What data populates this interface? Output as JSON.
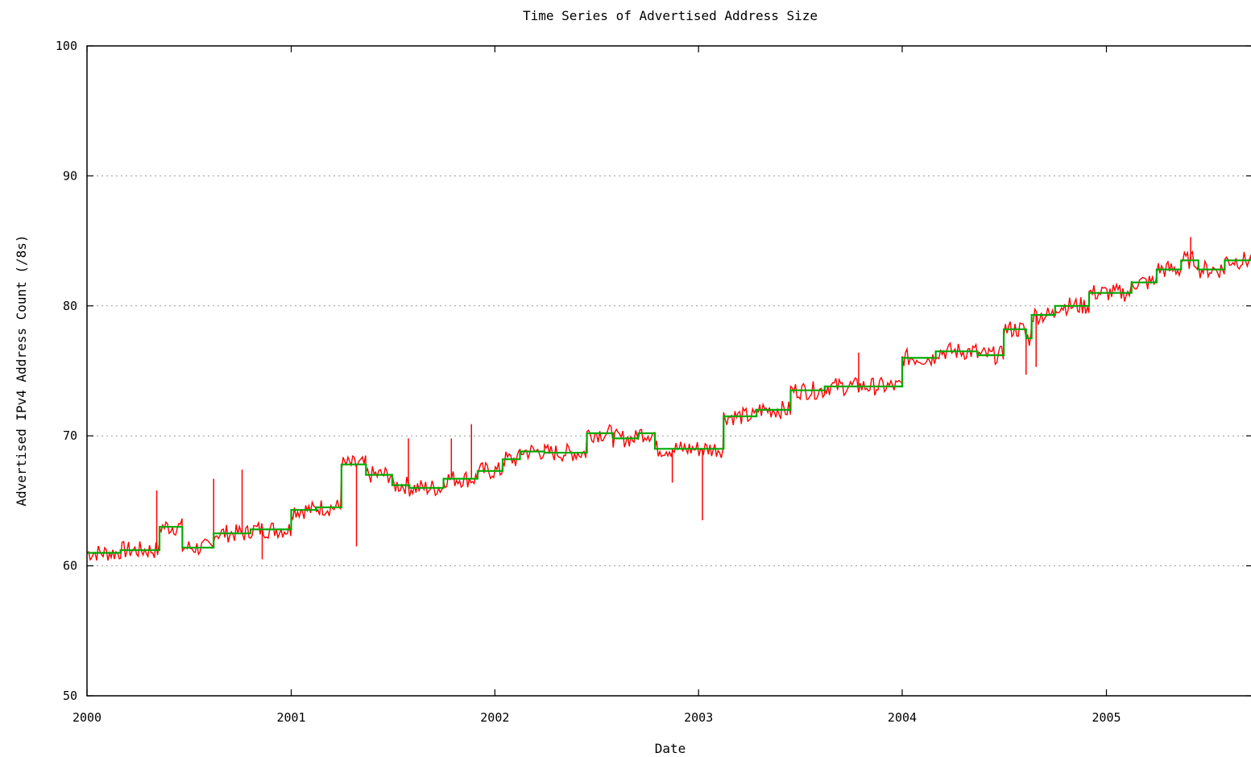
{
  "chart_data": {
    "type": "line",
    "title": "Time Series of Advertised Address Size",
    "xlabel": "Date",
    "ylabel": "Advertised IPv4 Address Count (/8s)",
    "xlim": [
      "2000-01-01",
      "2005-09-20"
    ],
    "ylim": [
      50,
      100
    ],
    "x_ticks": [
      "2000",
      "2001",
      "2002",
      "2003",
      "2004",
      "2005"
    ],
    "y_ticks": [
      50,
      60,
      70,
      80,
      90,
      100
    ],
    "grid": {
      "y": true,
      "x": false,
      "style": "dotted"
    },
    "legend": null,
    "series": [
      {
        "color": "#ff0000",
        "style": "noisy daily values with spikes",
        "x": [
          "2000-01-01",
          "2000-03-01",
          "2000-05-10",
          "2000-06-20",
          "2000-08-15",
          "2000-10-20",
          "2001-01-01",
          "2001-02-15",
          "2001-04-01",
          "2001-05-15",
          "2001-07-01",
          "2001-08-01",
          "2001-10-01",
          "2001-12-01",
          "2002-01-15",
          "2002-02-15",
          "2002-03-31",
          "2002-05-15",
          "2002-06-15",
          "2002-08-01",
          "2002-09-15",
          "2002-10-15",
          "2002-12-01",
          "2003-01-10",
          "2003-02-15",
          "2003-04-15",
          "2003-06-15",
          "2003-08-15",
          "2003-10-15",
          "2004-01-01",
          "2004-03-01",
          "2004-05-15",
          "2004-07-01",
          "2004-08-10",
          "2004-08-20",
          "2004-10-01",
          "2004-12-01",
          "2005-02-15",
          "2005-04-01",
          "2005-05-15",
          "2005-06-15",
          "2005-08-01",
          "2005-09-20"
        ],
        "y": [
          61.0,
          61.2,
          63.0,
          61.4,
          62.5,
          62.8,
          64.3,
          64.5,
          67.8,
          67.0,
          66.2,
          66.0,
          66.7,
          67.3,
          68.2,
          68.8,
          68.7,
          68.7,
          70.2,
          69.8,
          70.2,
          69.0,
          69.0,
          69.0,
          71.5,
          72.0,
          73.5,
          73.8,
          73.8,
          76.0,
          76.5,
          76.2,
          78.2,
          77.5,
          79.3,
          80.0,
          81.0,
          81.8,
          82.8,
          83.5,
          82.8,
          83.5,
          84.8
        ],
        "spikes": [
          {
            "x": "2000-05-05",
            "y": 65.8
          },
          {
            "x": "2000-08-15",
            "y": 66.7
          },
          {
            "x": "2000-10-05",
            "y": 67.4
          },
          {
            "x": "2000-11-10",
            "y": 60.5
          },
          {
            "x": "2001-04-28",
            "y": 61.5
          },
          {
            "x": "2001-07-30",
            "y": 69.8
          },
          {
            "x": "2001-10-15",
            "y": 69.8
          },
          {
            "x": "2001-11-20",
            "y": 70.9
          },
          {
            "x": "2002-11-15",
            "y": 66.4
          },
          {
            "x": "2003-01-08",
            "y": 63.5
          },
          {
            "x": "2003-10-15",
            "y": 76.4
          },
          {
            "x": "2004-08-10",
            "y": 74.7
          },
          {
            "x": "2004-08-28",
            "y": 75.3
          },
          {
            "x": "2005-06-01",
            "y": 85.3
          }
        ]
      },
      {
        "color": "#00aa00",
        "style": "smoothed step line",
        "x": [
          "2000-01-01",
          "2000-03-01",
          "2000-05-10",
          "2000-06-20",
          "2000-08-15",
          "2000-10-20",
          "2001-01-01",
          "2001-02-15",
          "2001-04-01",
          "2001-05-15",
          "2001-07-01",
          "2001-08-01",
          "2001-10-01",
          "2001-12-01",
          "2002-01-15",
          "2002-02-15",
          "2002-03-31",
          "2002-05-15",
          "2002-06-15",
          "2002-08-01",
          "2002-09-15",
          "2002-10-15",
          "2002-12-01",
          "2003-01-10",
          "2003-02-15",
          "2003-04-15",
          "2003-06-15",
          "2003-08-15",
          "2003-10-15",
          "2004-01-01",
          "2004-03-01",
          "2004-05-15",
          "2004-07-01",
          "2004-08-10",
          "2004-08-20",
          "2004-10-01",
          "2004-12-01",
          "2005-02-15",
          "2005-04-01",
          "2005-05-15",
          "2005-06-15",
          "2005-08-01",
          "2005-09-20"
        ],
        "y": [
          61.0,
          61.2,
          63.0,
          61.4,
          62.5,
          62.8,
          64.3,
          64.5,
          67.8,
          67.0,
          66.2,
          66.0,
          66.7,
          67.3,
          68.2,
          68.8,
          68.7,
          68.7,
          70.2,
          69.8,
          70.2,
          69.0,
          69.0,
          69.0,
          71.5,
          72.0,
          73.5,
          73.8,
          73.8,
          76.0,
          76.5,
          76.2,
          78.2,
          77.5,
          79.3,
          80.0,
          81.0,
          81.8,
          82.8,
          83.5,
          82.8,
          83.5,
          84.8
        ]
      }
    ]
  }
}
